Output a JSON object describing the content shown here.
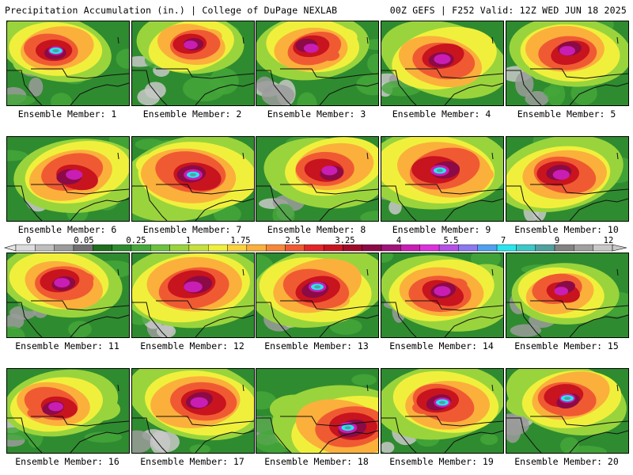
{
  "header": {
    "left": "Precipitation Accumulation (in.) | College of DuPage NEXLAB",
    "right": "00Z GEFS | F252 Valid: 12Z WED JUN 18 2025"
  },
  "members": [
    {
      "label": "Ensemble Member: 1",
      "wet": 0.45,
      "core": [
        0.4,
        0.35
      ],
      "extreme": true
    },
    {
      "label": "Ensemble Member: 2",
      "wet": 0.4,
      "core": [
        0.48,
        0.28
      ],
      "extreme": false
    },
    {
      "label": "Ensemble Member: 3",
      "wet": 0.45,
      "core": [
        0.45,
        0.32
      ],
      "extreme": false
    },
    {
      "label": "Ensemble Member: 4",
      "wet": 0.55,
      "core": [
        0.5,
        0.45
      ],
      "extreme": false
    },
    {
      "label": "Ensemble Member: 5",
      "wet": 0.5,
      "core": [
        0.5,
        0.35
      ],
      "extreme": false
    },
    {
      "label": "Ensemble Member: 6",
      "wet": 0.55,
      "core": [
        0.55,
        0.45
      ],
      "extreme": false
    },
    {
      "label": "Ensemble Member: 7",
      "wet": 0.65,
      "core": [
        0.5,
        0.45
      ],
      "extreme": true
    },
    {
      "label": "Ensemble Member: 8",
      "wet": 0.5,
      "core": [
        0.6,
        0.4
      ],
      "extreme": false
    },
    {
      "label": "Ensemble Member: 9",
      "wet": 0.65,
      "core": [
        0.48,
        0.4
      ],
      "extreme": true
    },
    {
      "label": "Ensemble Member: 10",
      "wet": 0.55,
      "core": [
        0.45,
        0.45
      ],
      "extreme": false
    },
    {
      "label": "Ensemble Member: 11",
      "wet": 0.5,
      "core": [
        0.45,
        0.35
      ],
      "extreme": false
    },
    {
      "label": "Ensemble Member: 12",
      "wet": 0.65,
      "core": [
        0.5,
        0.4
      ],
      "extreme": false
    },
    {
      "label": "Ensemble Member: 13",
      "wet": 0.6,
      "core": [
        0.5,
        0.4
      ],
      "extreme": true
    },
    {
      "label": "Ensemble Member: 14",
      "wet": 0.55,
      "core": [
        0.5,
        0.45
      ],
      "extreme": false
    },
    {
      "label": "Ensemble Member: 15",
      "wet": 0.4,
      "core": [
        0.45,
        0.45
      ],
      "extreme": false
    },
    {
      "label": "Ensemble Member: 16",
      "wet": 0.45,
      "core": [
        0.4,
        0.45
      ],
      "extreme": false
    },
    {
      "label": "Ensemble Member: 17",
      "wet": 0.6,
      "core": [
        0.55,
        0.4
      ],
      "extreme": false
    },
    {
      "label": "Ensemble Member: 18",
      "wet": 0.65,
      "core": [
        0.75,
        0.7
      ],
      "extreme": true
    },
    {
      "label": "Ensemble Member: 19",
      "wet": 0.55,
      "core": [
        0.5,
        0.4
      ],
      "extreme": true
    },
    {
      "label": "Ensemble Member: 20",
      "wet": 0.5,
      "core": [
        0.5,
        0.35
      ],
      "extreme": true
    }
  ],
  "colorbar": {
    "labels": [
      "0",
      "0.05",
      "0.25",
      "1",
      "1.75",
      "2.5",
      "3.25",
      "4",
      "5.5",
      "7",
      "9",
      "12"
    ],
    "colors": [
      "#dcdcdc",
      "#bebebe",
      "#9b9b9b",
      "#707070",
      "#1e6e1e",
      "#2e8b2e",
      "#45a83a",
      "#6cc23e",
      "#9ad43c",
      "#c8e03c",
      "#f0f03c",
      "#fcd23c",
      "#fbb03c",
      "#f7873a",
      "#f05a32",
      "#e42626",
      "#c8141e",
      "#a00a28",
      "#8c0a46",
      "#a0147a",
      "#c81eb4",
      "#dc32dc",
      "#b450e6",
      "#8c78f0",
      "#50a0f0",
      "#28e6f0",
      "#3cc8c8",
      "#50a0a0",
      "#828282",
      "#a0a0a0",
      "#c8c8c8"
    ]
  },
  "icons": [
    "colorbar-left-arrow-icon",
    "colorbar-right-arrow-icon"
  ]
}
